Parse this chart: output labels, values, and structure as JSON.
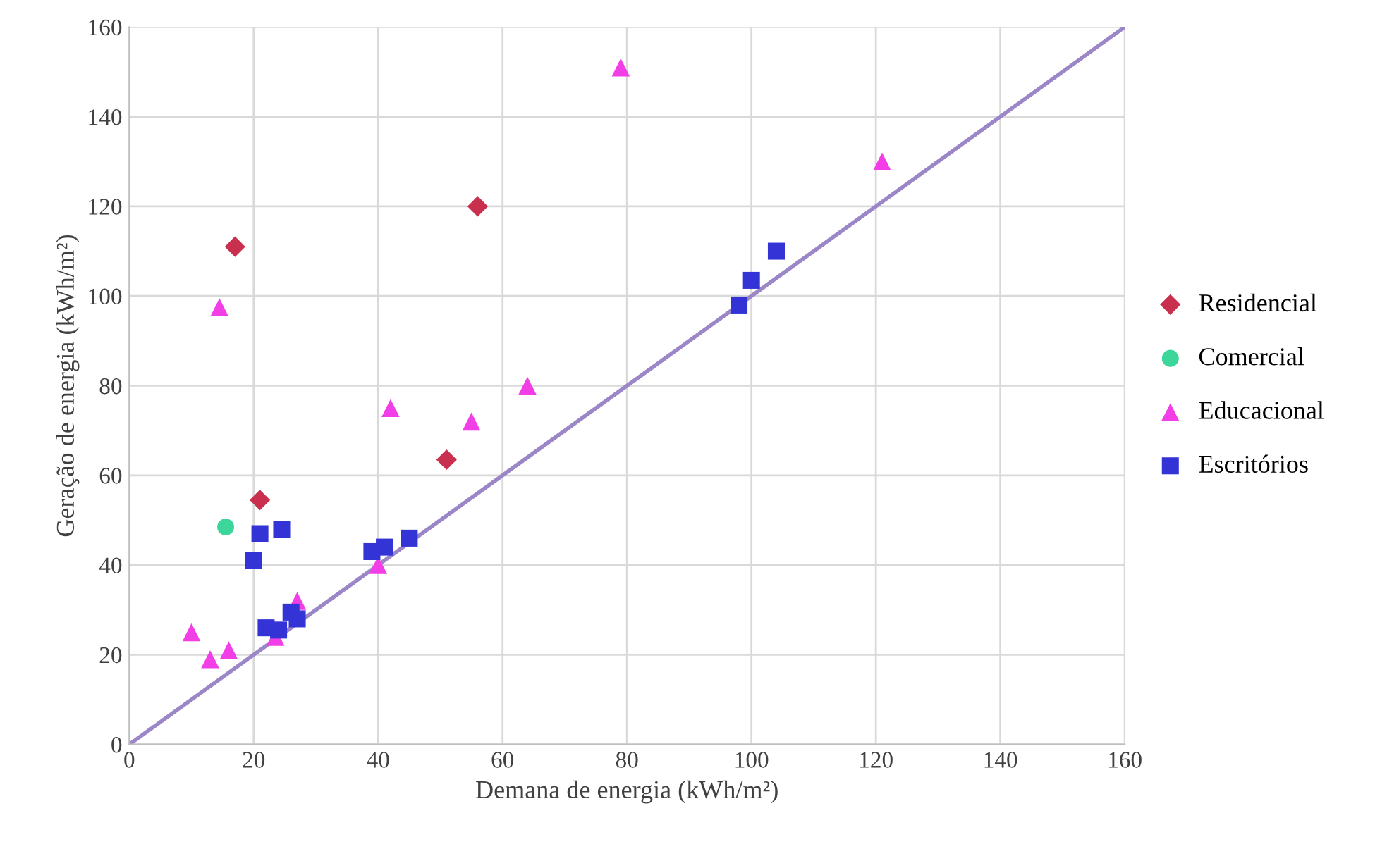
{
  "chart_data": {
    "type": "scatter",
    "xlabel": "Demana de energia (kWh/m²)",
    "ylabel": "Geração de energia (kWh/m²)",
    "xlim": [
      0,
      160
    ],
    "ylim": [
      0,
      160
    ],
    "xticks": [
      0,
      20,
      40,
      60,
      80,
      100,
      120,
      140,
      160
    ],
    "yticks": [
      0,
      20,
      40,
      60,
      80,
      100,
      120,
      140,
      160
    ],
    "grid": true,
    "legend": "right",
    "series": [
      {
        "name": "Residencial",
        "color": "#c8304e",
        "marker": "diamond",
        "x": [
          17,
          56,
          21,
          51
        ],
        "values": [
          111,
          120,
          54.5,
          63.5
        ]
      },
      {
        "name": "Comercial",
        "color": "#3dd69a",
        "marker": "circle",
        "x": [
          15.5
        ],
        "values": [
          48.5
        ]
      },
      {
        "name": "Educacional",
        "color": "#f23ee6",
        "marker": "triangle",
        "x": [
          14.5,
          79,
          121,
          42,
          55,
          64,
          40,
          27,
          23.5,
          10,
          13,
          16
        ],
        "values": [
          97.5,
          151,
          130,
          75,
          72,
          80,
          40,
          32,
          24,
          25,
          19,
          21
        ]
      },
      {
        "name": "Escritórios",
        "color": "#3434d6",
        "marker": "square",
        "x": [
          21,
          24.5,
          20,
          22,
          24,
          26,
          27,
          39,
          41,
          45,
          98,
          100,
          104
        ],
        "values": [
          47,
          48,
          41,
          26,
          25.5,
          29.5,
          28,
          43,
          44,
          46,
          98,
          103.5,
          110
        ]
      },
      {
        "type": "line",
        "color": "#9b87c7",
        "marker": "none",
        "x": [
          0,
          160
        ],
        "values": [
          0,
          160
        ]
      }
    ]
  }
}
